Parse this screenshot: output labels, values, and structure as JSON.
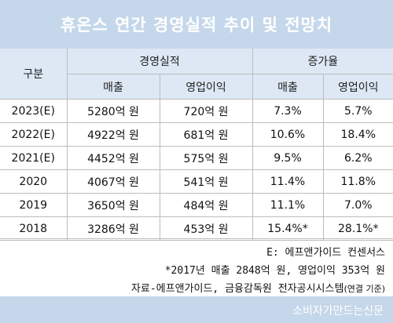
{
  "title": "휴온스 연간 경영실적 추이 및 전망치",
  "header": {
    "category": "구분",
    "performance": "경영실적",
    "growth": "증가율",
    "sales": "매출",
    "operating_profit": "영업이익"
  },
  "rows": [
    {
      "year": "2023(E)",
      "sales": "5280억 원",
      "op": "720억 원",
      "sales_growth": "7.3%",
      "op_growth": "5.7%"
    },
    {
      "year": "2022(E)",
      "sales": "4922억 원",
      "op": "681억 원",
      "sales_growth": "10.6%",
      "op_growth": "18.4%"
    },
    {
      "year": "2021(E)",
      "sales": "4452억 원",
      "op": "575억 원",
      "sales_growth": "9.5%",
      "op_growth": "6.2%"
    },
    {
      "year": "2020",
      "sales": "4067억 원",
      "op": "541억 원",
      "sales_growth": "11.4%",
      "op_growth": "11.8%"
    },
    {
      "year": "2019",
      "sales": "3650억 원",
      "op": "484억 원",
      "sales_growth": "11.1%",
      "op_growth": "7.0%"
    },
    {
      "year": "2018",
      "sales": "3286억 원",
      "op": "453억 원",
      "sales_growth": "15.4%*",
      "op_growth": "28.1%*"
    }
  ],
  "notes": {
    "estimate": "E: 에프앤가이드 컨센서스",
    "base_2017": "*2017년 매출 2848억 원, 영업이익 353억 원",
    "source": "자료-에프앤가이드, 금융감독원 전자공시시스템",
    "source_paren": "(연결 기준)"
  },
  "watermark": "소비자가만드는신문",
  "colors": {
    "banner": "#c5d7ea",
    "header_fill": "#dde8f4",
    "border": "#bcbcbc"
  }
}
